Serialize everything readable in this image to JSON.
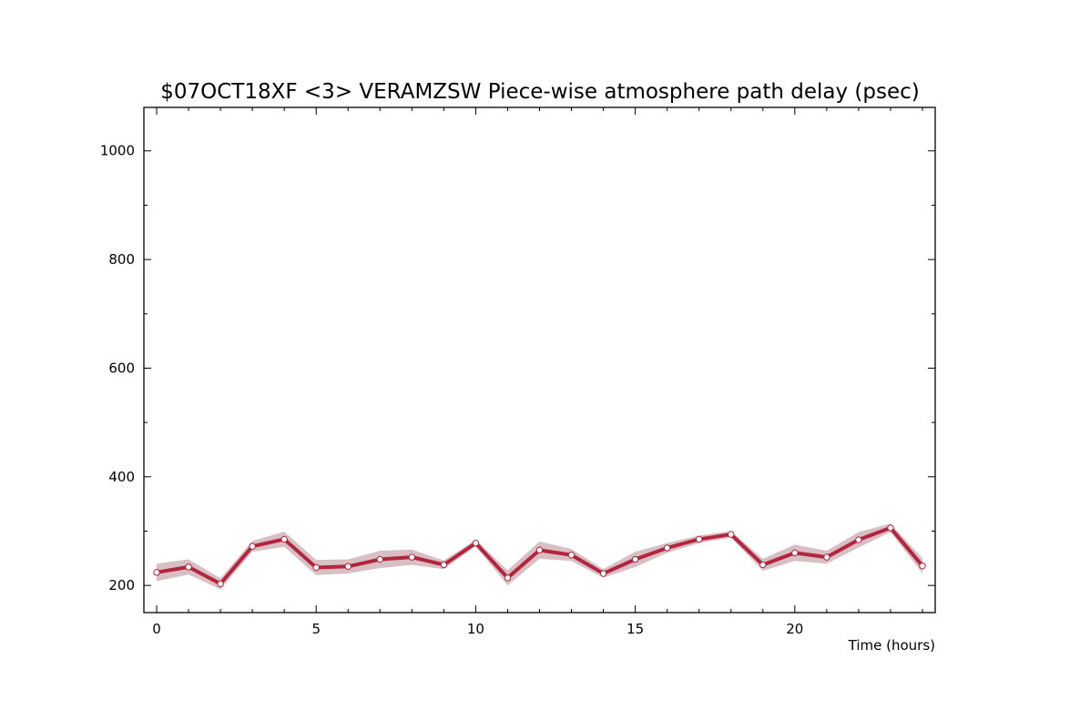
{
  "chart_data": {
    "type": "line",
    "title": "$07OCT18XF <3>  VERAMZSW  Piece-wise atmosphere path delay (psec)",
    "xlabel": "Time (hours)",
    "ylabel": "",
    "xlim": [
      -0.4,
      24.4
    ],
    "ylim": [
      150,
      1080
    ],
    "x_ticks": [
      0,
      5,
      10,
      15,
      20
    ],
    "y_ticks": [
      200,
      400,
      600,
      800,
      1000
    ],
    "x_tick_labels": [
      "0",
      "5",
      "10",
      "15",
      "20"
    ],
    "y_tick_labels": [
      "200",
      "400",
      "600",
      "800",
      "1000"
    ],
    "grid": false,
    "legend": "none",
    "colors": {
      "line": "#b3243f",
      "band": "#d8bfc3",
      "marker_fill": "#ffffff",
      "axes": "#000000"
    },
    "series": [
      {
        "x": [
          0,
          1,
          2,
          3,
          4,
          5,
          6,
          7,
          8,
          9,
          10,
          11,
          12,
          13,
          14,
          15,
          16,
          17,
          18,
          19,
          20,
          21,
          22,
          23,
          24
        ],
        "values": [
          224,
          234,
          203,
          272,
          285,
          233,
          235,
          248,
          252,
          238,
          278,
          214,
          265,
          256,
          222,
          248,
          269,
          285,
          294,
          238,
          260,
          252,
          284,
          306,
          236
        ],
        "error": [
          16,
          14,
          10,
          10,
          14,
          14,
          13,
          16,
          14,
          8,
          6,
          14,
          16,
          11,
          8,
          14,
          9,
          7,
          6,
          11,
          15,
          12,
          14,
          8,
          14
        ]
      }
    ]
  }
}
